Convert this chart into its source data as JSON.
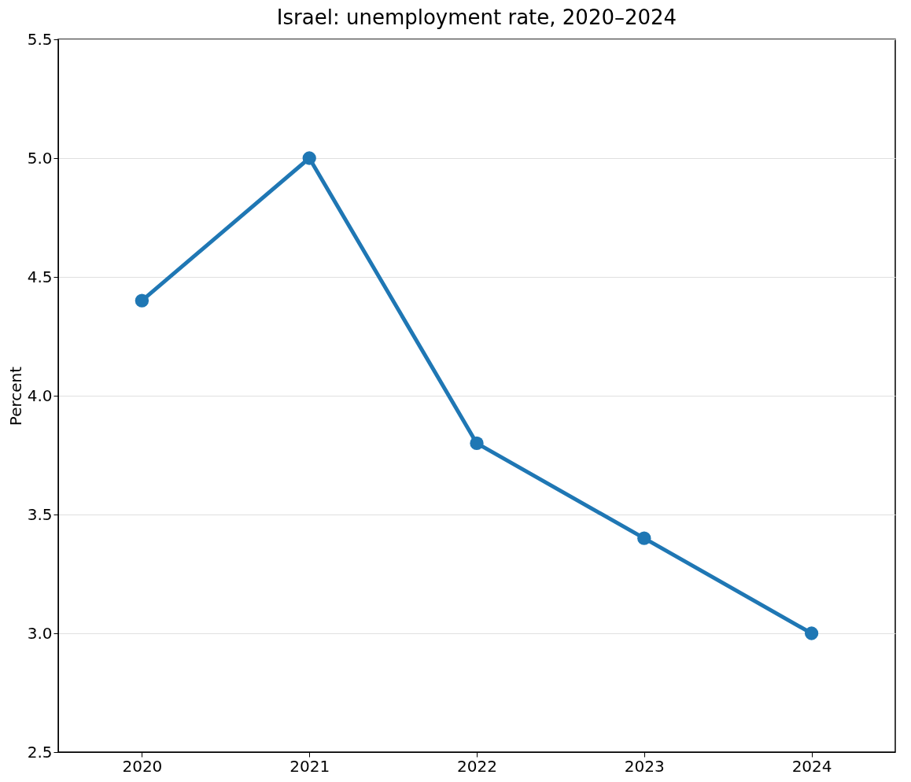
{
  "chart_data": {
    "type": "line",
    "title": "Israel: unemployment rate, 2020–2024",
    "ylabel": "Percent",
    "categories": [
      "2020",
      "2021",
      "2022",
      "2023",
      "2024"
    ],
    "series": [
      {
        "color": "#1f77b4",
        "values": [
          4.4,
          5.0,
          3.8,
          3.4,
          3.0
        ]
      }
    ],
    "ylim": [
      2.5,
      5.5
    ],
    "yticks": [
      2.5,
      {
        "value": 3,
        "label": "3.0"
      },
      3.5,
      {
        "value": 4,
        "label": "4.0"
      },
      4.5,
      {
        "value": 5,
        "label": "5.0"
      },
      5.5
    ],
    "grid": "y",
    "marker": "circle",
    "line_style": "solid"
  }
}
